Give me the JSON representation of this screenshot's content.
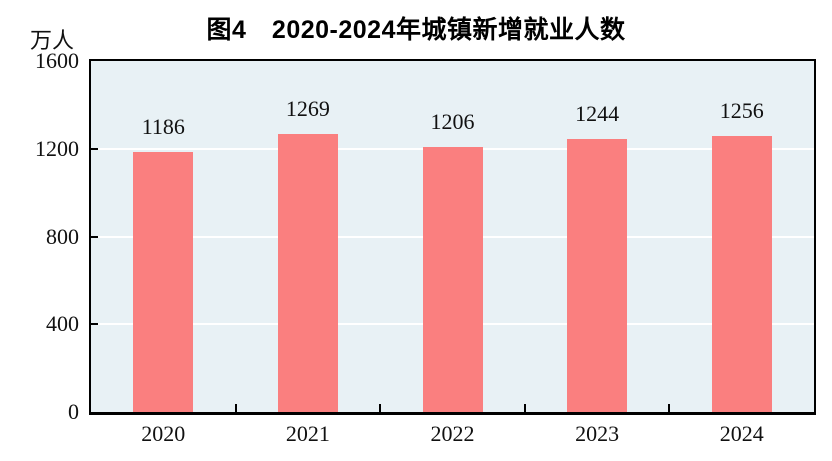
{
  "chart_data": {
    "type": "bar",
    "title": "图4　2020-2024年城镇新增就业人数",
    "ylabel": "万人",
    "xlabel": "",
    "categories": [
      "2020",
      "2021",
      "2022",
      "2023",
      "2024"
    ],
    "values": [
      1186,
      1269,
      1206,
      1244,
      1256
    ],
    "ylim": [
      0,
      1600
    ],
    "yticks": [
      0,
      400,
      800,
      1200,
      1600
    ],
    "grid": "horizontal",
    "legend_position": "none",
    "bar_color": "#FA7F7F",
    "plot_background": "#E8F1F5",
    "grid_color": "#FFFFFF",
    "axis_color": "#000000",
    "title_color": "#000000"
  }
}
